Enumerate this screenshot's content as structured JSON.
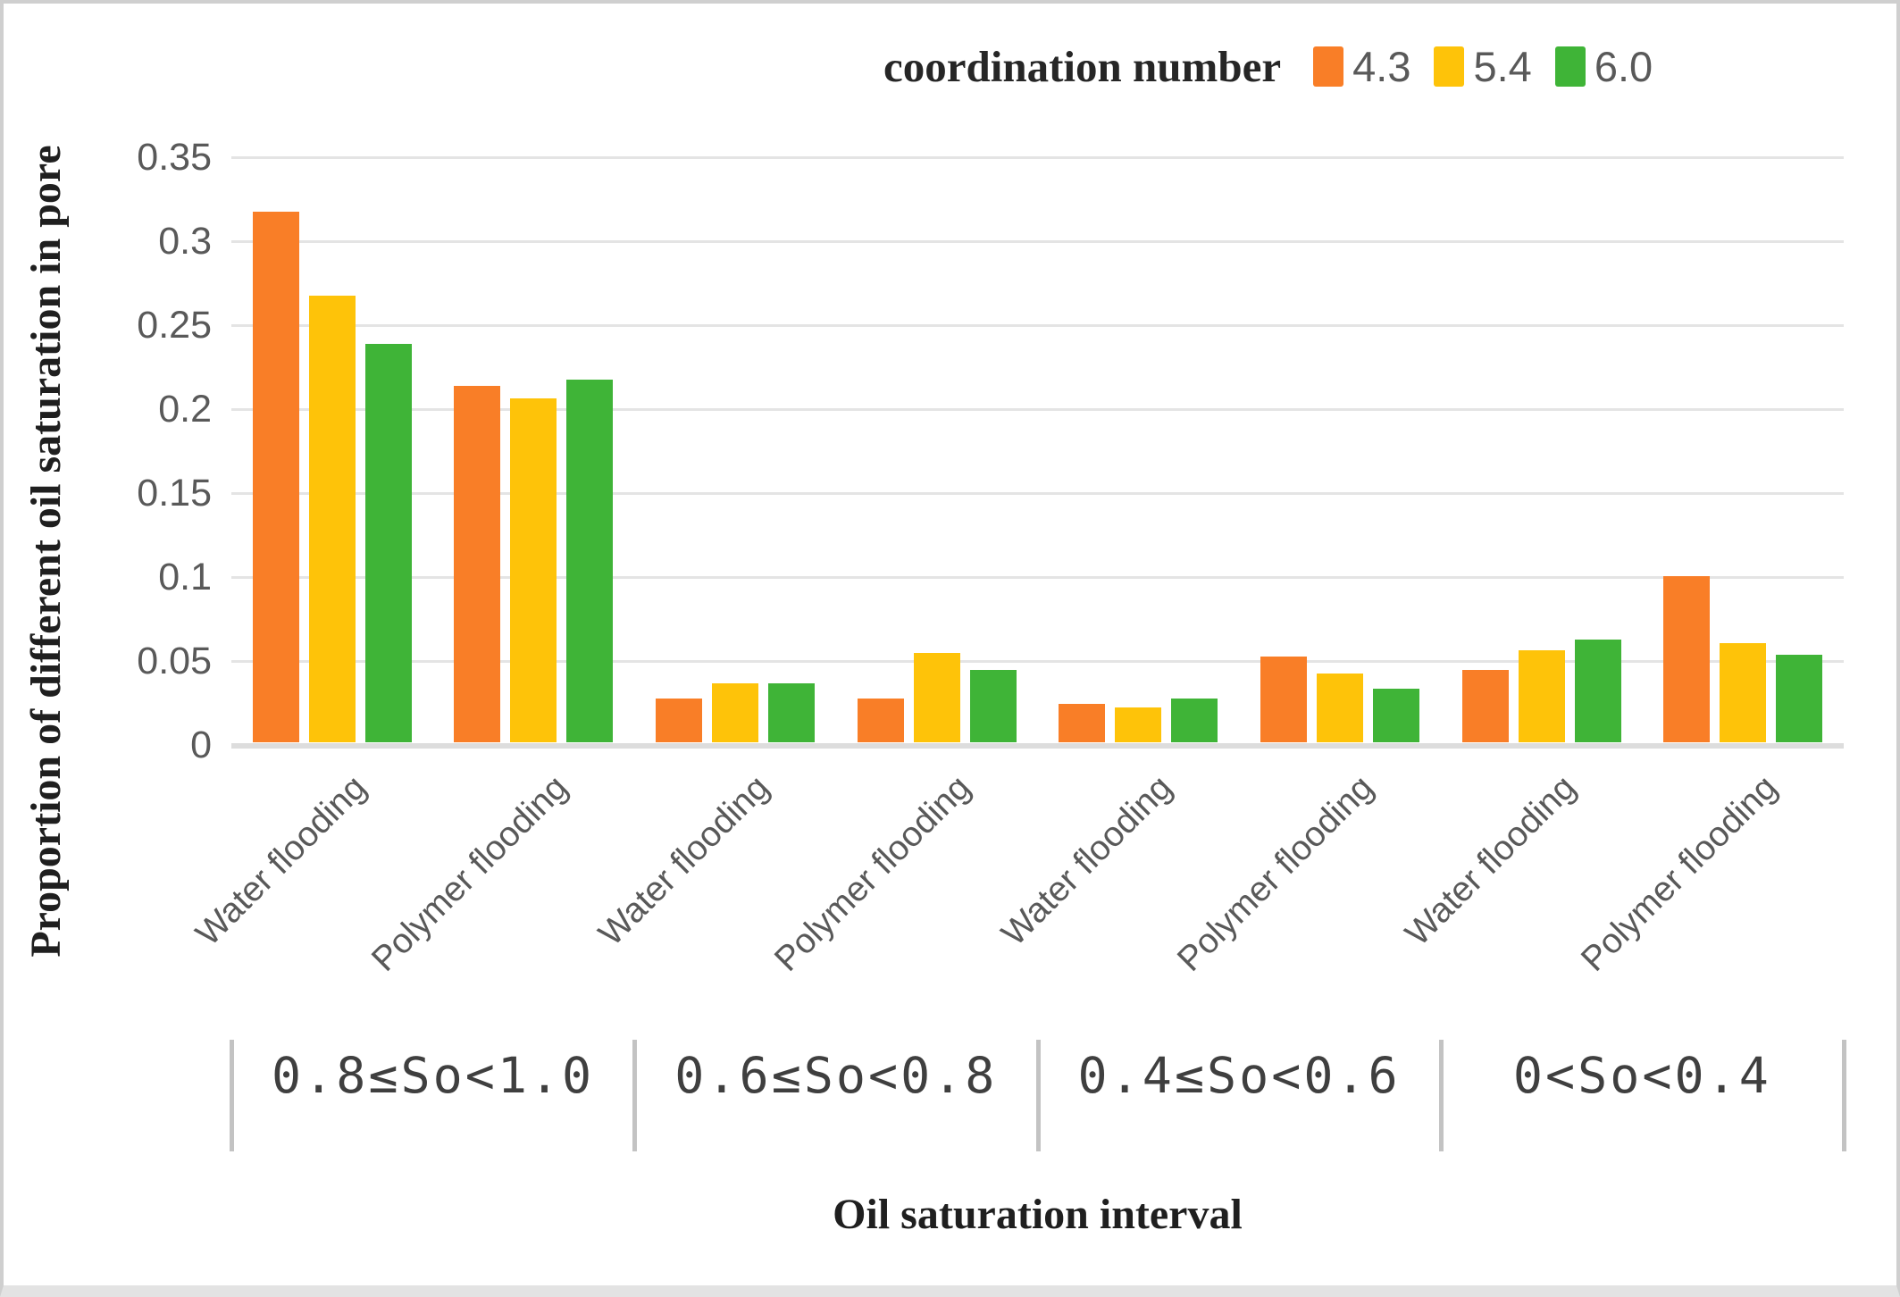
{
  "figure": {
    "y_axis_title": "Proportion of different oil saturation in pore",
    "x_axis_title": "Oil saturation interval",
    "legend_title": "coordination number"
  },
  "colors": {
    "series_orange": "#F97E27",
    "series_yellow": "#FEC309",
    "series_green": "#3FB437",
    "gridline": "#E4E4E4",
    "axis_baseline": "#DDDDDD",
    "tick_text": "#595959",
    "title_text": "#1F1F1F",
    "interval_separator": "#C3C3C3",
    "figure_border": "#CFCFCF"
  },
  "chart_data": {
    "type": "bar",
    "title": "",
    "legend_title": "coordination number",
    "legend_position": "top-right",
    "legend_entries": [
      "4.3",
      "5.4",
      "6.0"
    ],
    "xlabel": "Oil saturation interval",
    "ylabel": "Proportion of different oil saturation in pore",
    "ylim": [
      0,
      0.35
    ],
    "grid": true,
    "ytick_values": [
      0,
      0.05,
      0.1,
      0.15,
      0.2,
      0.25,
      0.3,
      0.35
    ],
    "ytick_labels": [
      "0",
      "0.05",
      "0.1",
      "0.15",
      "0.2",
      "0.25",
      "0.3",
      "0.35"
    ],
    "categories": [
      "Water flooding",
      "Polymer flooding",
      "Water flooding",
      "Polymer flooding",
      "Water flooding",
      "Polymer flooding",
      "Water flooding",
      "Polymer flooding"
    ],
    "interval_groups": [
      {
        "label": "0.8≤So<1.0",
        "categories": [
          "Water flooding",
          "Polymer flooding"
        ]
      },
      {
        "label": "0.6≤So<0.8",
        "categories": [
          "Water flooding",
          "Polymer flooding"
        ]
      },
      {
        "label": "0.4≤So<0.6",
        "categories": [
          "Water flooding",
          "Polymer flooding"
        ]
      },
      {
        "label": "0<So<0.4",
        "categories": [
          "Water flooding",
          "Polymer flooding"
        ]
      }
    ],
    "series": [
      {
        "name": "4.3",
        "color": "#F97E27",
        "values": [
          0.316,
          0.212,
          0.026,
          0.026,
          0.023,
          0.051,
          0.043,
          0.099
        ]
      },
      {
        "name": "5.4",
        "color": "#FEC309",
        "values": [
          0.266,
          0.205,
          0.035,
          0.053,
          0.021,
          0.041,
          0.055,
          0.059
        ]
      },
      {
        "name": "6.0",
        "color": "#3FB437",
        "values": [
          0.237,
          0.216,
          0.035,
          0.043,
          0.026,
          0.032,
          0.061,
          0.052
        ]
      }
    ]
  }
}
